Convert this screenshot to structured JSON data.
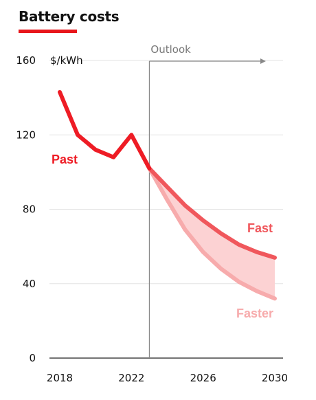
{
  "title": "Battery costs",
  "colors": {
    "accent": "#e8161b",
    "past": "#ee1c25",
    "fast": "#f0575c",
    "faster": "#f7abac",
    "band": "#fcd2d3",
    "grid": "#e3e3e3",
    "axis": "#888888"
  },
  "chart_data": {
    "type": "line",
    "ylabel": "$/kWh",
    "ylim": [
      0,
      160
    ],
    "xlim": [
      2018,
      2030
    ],
    "y_ticks": [
      0,
      40,
      80,
      120,
      160
    ],
    "y_tick_labels": [
      "0",
      "40",
      "80",
      "120",
      "160"
    ],
    "x_ticks": [
      2018,
      2022,
      2026,
      2030
    ],
    "x_tick_labels": [
      "2018",
      "2022",
      "2026",
      "2030"
    ],
    "annotation": {
      "text": "Outlook",
      "x_start": 2023,
      "x_end": 2029.5
    },
    "grid": true,
    "series": [
      {
        "name": "Past",
        "x": [
          2018,
          2019,
          2020,
          2021,
          2022,
          2023
        ],
        "y": [
          143,
          120,
          112,
          108,
          120,
          102
        ]
      },
      {
        "name": "Fast",
        "x": [
          2023,
          2024,
          2025,
          2026,
          2027,
          2028,
          2029,
          2030
        ],
        "y": [
          102,
          92,
          82,
          74,
          67,
          61,
          57,
          54
        ]
      },
      {
        "name": "Faster",
        "x": [
          2023,
          2024,
          2025,
          2026,
          2027,
          2028,
          2029,
          2030
        ],
        "y": [
          102,
          85,
          69,
          57,
          48,
          41,
          36,
          32
        ]
      }
    ]
  }
}
